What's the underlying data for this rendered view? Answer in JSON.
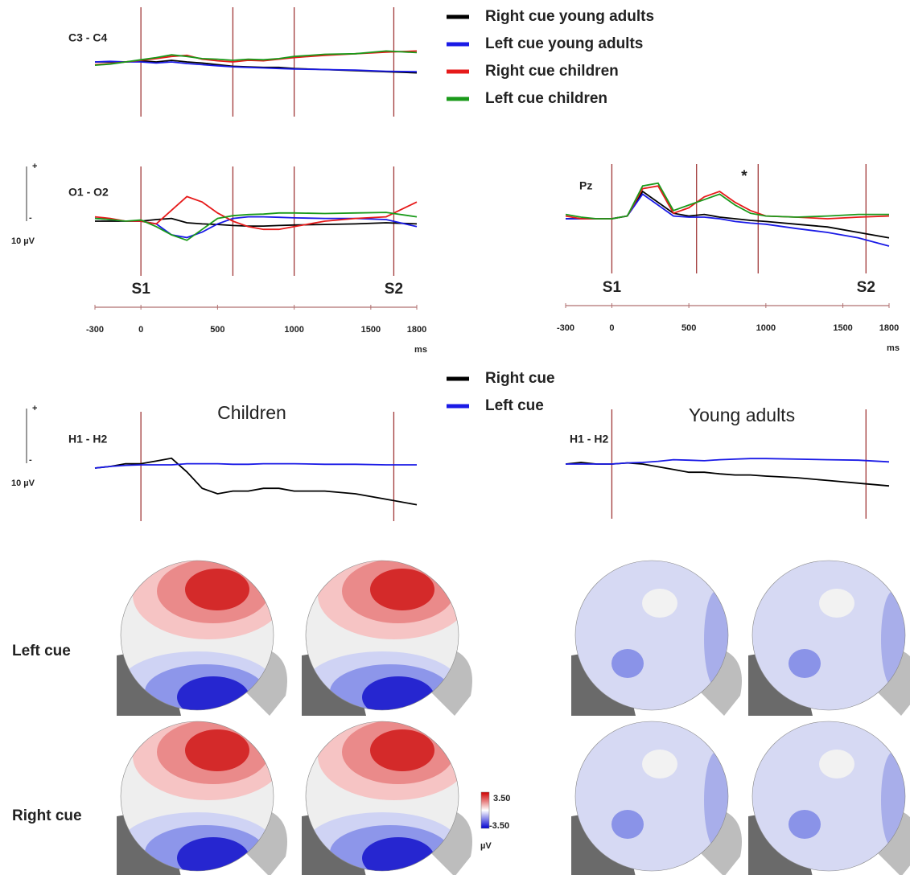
{
  "chart_data": [
    {
      "type": "line",
      "label": "C3 - C4",
      "xlim": [
        -300,
        1800
      ],
      "ylim": [
        -10,
        10
      ],
      "vlines": [
        0,
        600,
        1000,
        1650
      ],
      "x": [
        -300,
        -200,
        -100,
        0,
        100,
        200,
        300,
        400,
        500,
        600,
        700,
        800,
        900,
        1000,
        1200,
        1400,
        1600,
        1800
      ],
      "series": [
        {
          "name": "Right cue young adults",
          "color": "#000000",
          "values": [
            0,
            0,
            0,
            0.2,
            0,
            0.3,
            0,
            -0.2,
            -0.5,
            -0.8,
            -0.9,
            -1,
            -1,
            -1.2,
            -1.4,
            -1.6,
            -1.8,
            -2
          ]
        },
        {
          "name": "Left cue young adults",
          "color": "#1a1ae6",
          "values": [
            0,
            0.1,
            0,
            0,
            -0.2,
            0,
            -0.3,
            -0.5,
            -0.7,
            -0.9,
            -1,
            -1.1,
            -1.2,
            -1.3,
            -1.4,
            -1.5,
            -1.7,
            -1.8
          ]
        },
        {
          "name": "Right cue children",
          "color": "#e61a1a",
          "values": [
            -0.5,
            -0.3,
            0,
            0.3,
            0.6,
            1,
            1.2,
            0.5,
            0.2,
            0,
            0.3,
            0.2,
            0.5,
            0.8,
            1.2,
            1.5,
            1.8,
            2
          ]
        },
        {
          "name": "Left cue children",
          "color": "#1a9a1a",
          "values": [
            -0.6,
            -0.4,
            0,
            0.4,
            0.8,
            1.3,
            1,
            0.6,
            0.5,
            0.3,
            0.5,
            0.4,
            0.6,
            1,
            1.4,
            1.5,
            2,
            1.7
          ]
        }
      ]
    },
    {
      "type": "line",
      "label": "O1 - O2",
      "xlim": [
        -300,
        1800
      ],
      "ylim": [
        -10,
        10
      ],
      "vlines": [
        0,
        600,
        1000,
        1650
      ],
      "xticks": [
        -300,
        0,
        500,
        1000,
        1500,
        1800
      ],
      "xlabel": "ms",
      "event_labels": [
        {
          "text": "S1",
          "value": 0
        },
        {
          "text": "S2",
          "value": 1650
        }
      ],
      "x": [
        -300,
        -200,
        -100,
        0,
        100,
        200,
        300,
        400,
        500,
        600,
        700,
        800,
        900,
        1000,
        1200,
        1400,
        1600,
        1800
      ],
      "series": [
        {
          "name": "Right cue young adults",
          "color": "#000000",
          "values": [
            0,
            0,
            0,
            0,
            0.3,
            0.5,
            -0.3,
            -0.5,
            -0.6,
            -0.8,
            -0.9,
            -0.9,
            -0.8,
            -0.7,
            -0.6,
            -0.5,
            -0.3,
            -0.5
          ]
        },
        {
          "name": "Left cue young adults",
          "color": "#1a1ae6",
          "values": [
            0.5,
            0.3,
            0,
            0,
            -0.5,
            -2.5,
            -3,
            -2,
            -0.5,
            0.5,
            0.8,
            0.8,
            0.7,
            0.6,
            0.5,
            0.5,
            0.3,
            -1
          ]
        },
        {
          "name": "Right cue children",
          "color": "#e61a1a",
          "values": [
            0.8,
            0.5,
            0,
            0,
            -0.5,
            2,
            4.5,
            3.5,
            1.5,
            0,
            -1,
            -1.5,
            -1.5,
            -1,
            0,
            0.5,
            0.8,
            3.5
          ]
        },
        {
          "name": "Left cue children",
          "color": "#1a9a1a",
          "values": [
            0.5,
            0.3,
            0,
            0.2,
            -1,
            -2.5,
            -3.5,
            -1.5,
            0.5,
            1,
            1.2,
            1.3,
            1.5,
            1.5,
            1.4,
            1.5,
            1.6,
            0.8
          ]
        }
      ]
    },
    {
      "type": "line",
      "label": "Pz",
      "annotation": "*",
      "xlim": [
        -300,
        1800
      ],
      "ylim": [
        -10,
        10
      ],
      "vlines": [
        0,
        550,
        950,
        1650
      ],
      "xticks": [
        -300,
        0,
        500,
        1000,
        1500,
        1800
      ],
      "xlabel": "ms",
      "event_labels": [
        {
          "text": "S1",
          "value": 0
        },
        {
          "text": "S2",
          "value": 1650
        }
      ],
      "x": [
        -300,
        -200,
        -100,
        0,
        100,
        200,
        300,
        400,
        500,
        600,
        700,
        800,
        900,
        1000,
        1200,
        1400,
        1600,
        1800
      ],
      "series": [
        {
          "name": "Right cue young adults",
          "color": "#000000",
          "values": [
            0,
            0,
            0,
            0,
            0.5,
            5,
            3,
            1,
            0.5,
            0.8,
            0.3,
            0,
            -0.3,
            -0.5,
            -1,
            -1.5,
            -2.5,
            -3.5
          ]
        },
        {
          "name": "Left cue young adults",
          "color": "#1a1ae6",
          "values": [
            0,
            0,
            0,
            0,
            0.5,
            4.5,
            2.5,
            0.5,
            0.3,
            0.3,
            0,
            -0.5,
            -0.8,
            -1,
            -1.8,
            -2.5,
            -3.5,
            -5
          ]
        },
        {
          "name": "Right cue children",
          "color": "#e61a1a",
          "values": [
            0.5,
            0,
            0,
            0,
            0.5,
            5.5,
            6,
            1,
            2,
            4,
            5,
            3,
            1.5,
            0.5,
            0.3,
            0,
            0.3,
            0.5
          ]
        },
        {
          "name": "Left cue children",
          "color": "#1a9a1a",
          "values": [
            0.8,
            0.3,
            0,
            0,
            0.5,
            6,
            6.5,
            1.5,
            2.5,
            3.5,
            4.5,
            2.5,
            1,
            0.5,
            0.3,
            0.5,
            0.8,
            0.8
          ]
        }
      ]
    },
    {
      "type": "line",
      "title": "Children",
      "label": "H1 - H2",
      "xlim": [
        -300,
        1800
      ],
      "ylim": [
        -10,
        10
      ],
      "vlines": [
        0,
        1650
      ],
      "x": [
        -300,
        -200,
        -100,
        0,
        100,
        200,
        300,
        400,
        500,
        600,
        700,
        800,
        900,
        1000,
        1200,
        1400,
        1600,
        1800
      ],
      "series": [
        {
          "name": "Right cue",
          "color": "#000000",
          "values": [
            -0.3,
            0,
            0.5,
            0.5,
            1,
            1.5,
            -1,
            -4,
            -5,
            -4.5,
            -4.5,
            -4,
            -4,
            -4.5,
            -4.5,
            -5,
            -6,
            -7
          ]
        },
        {
          "name": "Left cue",
          "color": "#1a1ae6",
          "values": [
            -0.3,
            0,
            0.2,
            0.3,
            0.3,
            0.3,
            0.5,
            0.5,
            0.5,
            0.4,
            0.4,
            0.5,
            0.5,
            0.5,
            0.4,
            0.4,
            0.3,
            0.3
          ]
        }
      ]
    },
    {
      "type": "line",
      "title": "Young adults",
      "label": "H1 - H2",
      "xlim": [
        -300,
        1800
      ],
      "ylim": [
        -10,
        10
      ],
      "vlines": [
        0,
        1650
      ],
      "x": [
        -300,
        -200,
        -100,
        0,
        100,
        200,
        300,
        400,
        500,
        600,
        700,
        800,
        900,
        1000,
        1200,
        1400,
        1600,
        1800
      ],
      "series": [
        {
          "name": "Right cue",
          "color": "#000000",
          "values": [
            0,
            0.3,
            0,
            0,
            0.2,
            0,
            -0.5,
            -1,
            -1.5,
            -1.5,
            -1.8,
            -2,
            -2,
            -2.2,
            -2.5,
            -3,
            -3.5,
            -4
          ]
        },
        {
          "name": "Left cue",
          "color": "#1a1ae6",
          "values": [
            0,
            0,
            0,
            0,
            0.2,
            0.3,
            0.5,
            0.8,
            0.7,
            0.6,
            0.8,
            0.9,
            1,
            1,
            0.9,
            0.8,
            0.7,
            0.4
          ]
        }
      ]
    }
  ],
  "scale_bars": [
    {
      "value": 10,
      "label": "10 µV",
      "plus": "+",
      "minus": "-"
    },
    {
      "value": 10,
      "label": "10 µV",
      "plus": "+",
      "minus": "-"
    }
  ],
  "scalp_maps": {
    "rows": [
      "Left cue",
      "Right cue"
    ],
    "colorbar": {
      "max": {
        "value": 3.5,
        "label": "3.50"
      },
      "min": {
        "value": -3.5,
        "label": "-3.50"
      },
      "unit": "µV"
    }
  }
}
